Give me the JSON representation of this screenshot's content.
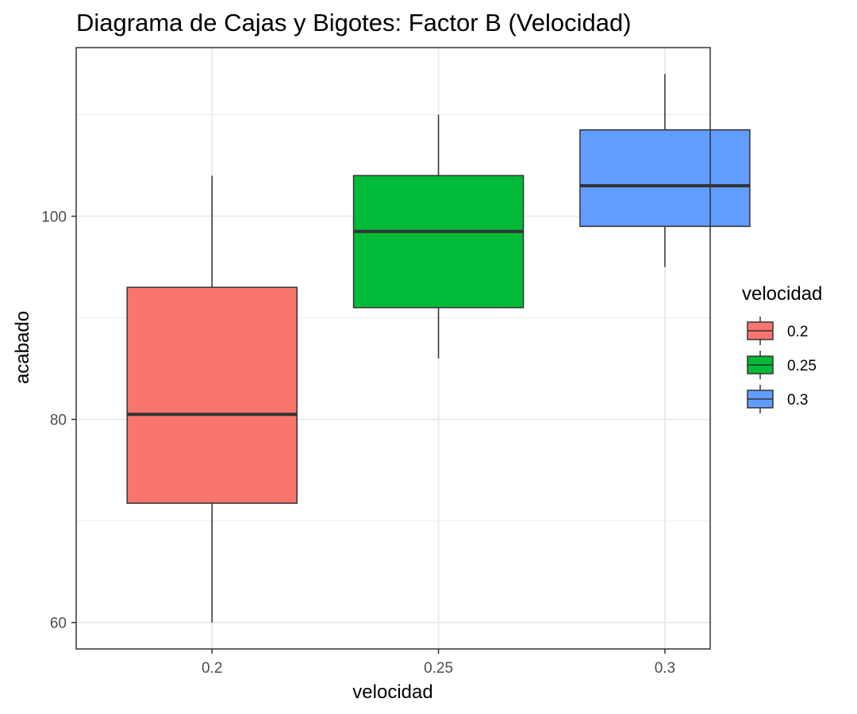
{
  "chart_data": {
    "type": "box",
    "title": "Diagrama de Cajas y Bigotes: Factor B (Velocidad)",
    "xlabel": "velocidad",
    "ylabel": "acabado",
    "categories": [
      "0.2",
      "0.25",
      "0.3"
    ],
    "boxes": [
      {
        "category": "0.2",
        "min": 60,
        "q1": 71.75,
        "median": 80.5,
        "q3": 93,
        "max": 104,
        "color": "#F8766D"
      },
      {
        "category": "0.25",
        "min": 86,
        "q1": 91,
        "median": 98.5,
        "q3": 104,
        "max": 110,
        "color": "#00BA38"
      },
      {
        "category": "0.3",
        "min": 95,
        "q1": 99,
        "median": 103,
        "q3": 108.5,
        "max": 114,
        "color": "#619CFF"
      }
    ],
    "yticks": [
      "60",
      "80",
      "100"
    ],
    "ylim": [
      57.4,
      116.6
    ],
    "grid": true,
    "legend": {
      "title": "velocidad",
      "placement": "right",
      "entries": [
        "0.2",
        "0.25",
        "0.3"
      ]
    }
  }
}
